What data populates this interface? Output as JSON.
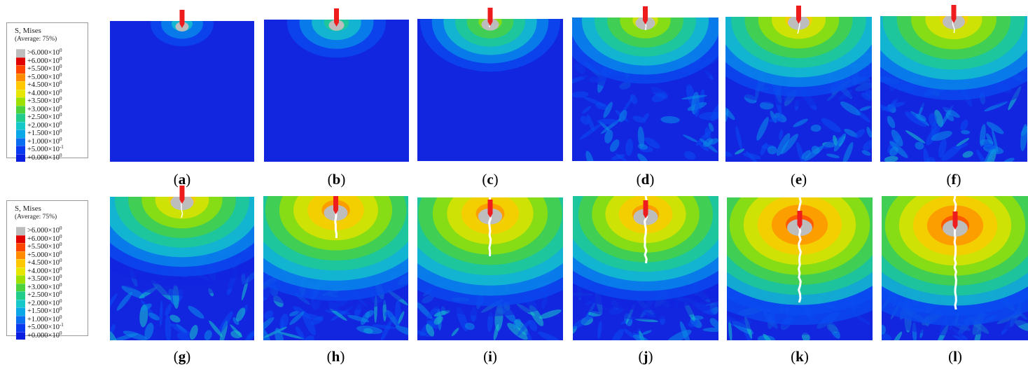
{
  "legend": {
    "title": "S, Mises",
    "subtitle": "(Average: 75%)",
    "entries": [
      {
        "mant": ">6.000",
        "exp": "0",
        "color": "#bdbdbd"
      },
      {
        "mant": "+6.000",
        "exp": "0",
        "color": "#e00000"
      },
      {
        "mant": "+5.500",
        "exp": "0",
        "color": "#ff4500"
      },
      {
        "mant": "+5.000",
        "exp": "0",
        "color": "#ff8c00"
      },
      {
        "mant": "+4.500",
        "exp": "0",
        "color": "#ffc800"
      },
      {
        "mant": "+4.000",
        "exp": "0",
        "color": "#e6e600"
      },
      {
        "mant": "+3.500",
        "exp": "0",
        "color": "#9ee000"
      },
      {
        "mant": "+3.000",
        "exp": "0",
        "color": "#4cd23c"
      },
      {
        "mant": "+2.500",
        "exp": "0",
        "color": "#22cc8a"
      },
      {
        "mant": "+2.000",
        "exp": "0",
        "color": "#16c8c8"
      },
      {
        "mant": "+1.500",
        "exp": "0",
        "color": "#0aa8e6"
      },
      {
        "mant": "+1.000",
        "exp": "0",
        "color": "#0a6ef0"
      },
      {
        "mant": "+5.000",
        "exp": "-1",
        "color": "#0a3af0"
      },
      {
        "mant": "+0.000",
        "exp": "0",
        "color": "#0a1ee0"
      }
    ]
  },
  "panels": [
    {
      "label": "a",
      "intensity": 0.15,
      "crack": 0
    },
    {
      "label": "b",
      "intensity": 0.3,
      "crack": 0
    },
    {
      "label": "c",
      "intensity": 0.45,
      "crack": 0.05
    },
    {
      "label": "d",
      "intensity": 0.6,
      "crack": 0.08
    },
    {
      "label": "e",
      "intensity": 0.75,
      "crack": 0.1
    },
    {
      "label": "f",
      "intensity": 0.8,
      "crack": 0.12
    },
    {
      "label": "g",
      "intensity": 0.85,
      "crack": 0.15
    },
    {
      "label": "h",
      "intensity": 0.9,
      "crack": 0.2
    },
    {
      "label": "i",
      "intensity": 0.92,
      "crack": 0.3
    },
    {
      "label": "j",
      "intensity": 0.95,
      "crack": 0.35
    },
    {
      "label": "k",
      "intensity": 1.0,
      "crack": 0.55
    },
    {
      "label": "l",
      "intensity": 1.0,
      "crack": 0.6
    }
  ],
  "colors": {
    "background": "#1226e0",
    "indenter": "#ee1c1c",
    "crack": "#ffffff"
  }
}
